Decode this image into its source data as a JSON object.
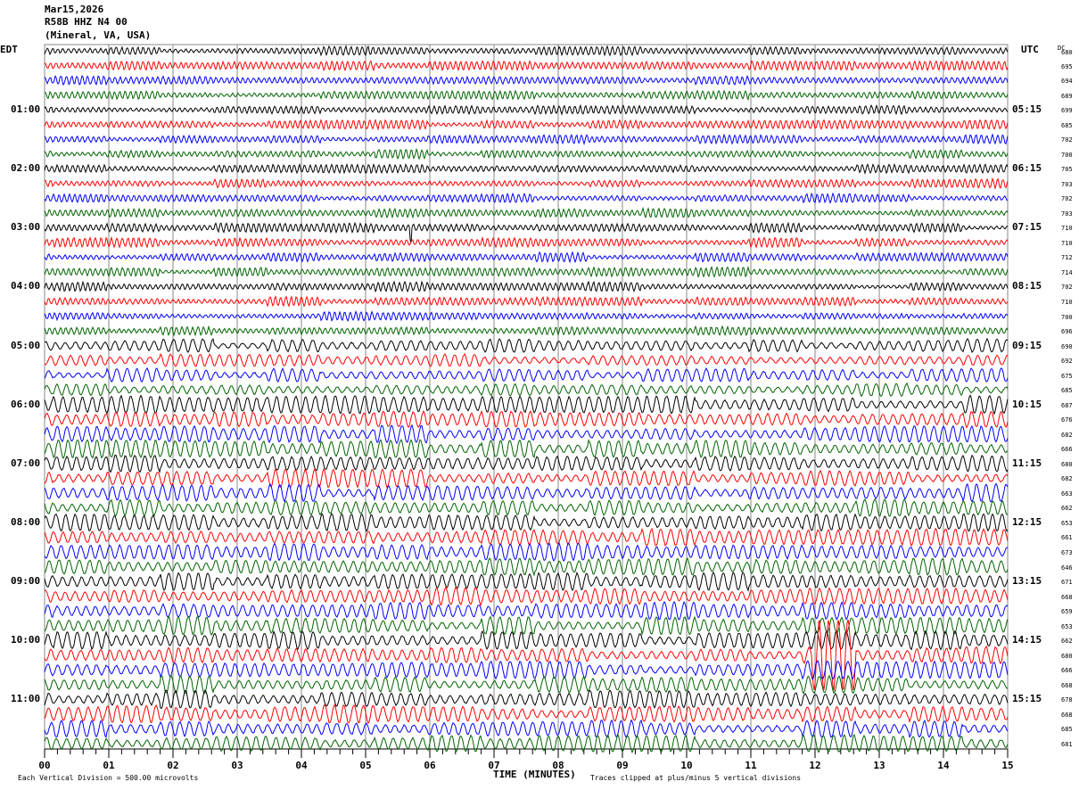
{
  "header": {
    "date": "Mar15,2026",
    "station": "R58B HHZ N4 00",
    "location": "(Mineral, VA, USA)"
  },
  "left_tz": "EDT",
  "right_tz": "UTC",
  "dc_label": "DC",
  "footer": {
    "scale": "Each Vertical Division =  500.00 microvolts",
    "clip": "Traces clipped at plus/minus 5 vertical divisions"
  },
  "chart_data": {
    "type": "line",
    "title": "R58B HHZ N4 00 helicorder",
    "xlabel": "TIME (MINUTES)",
    "xlim": [
      0,
      15
    ],
    "x_ticks": [
      "00",
      "01",
      "02",
      "03",
      "04",
      "05",
      "06",
      "07",
      "08",
      "09",
      "10",
      "11",
      "12",
      "13",
      "14",
      "15"
    ],
    "trace_colors": [
      "#000000",
      "#ff0000",
      "#0000ff",
      "#006400"
    ],
    "left_hour_labels": [
      "01:00",
      "02:00",
      "03:00",
      "04:00",
      "05:00",
      "06:00",
      "07:00",
      "08:00",
      "09:00",
      "10:00",
      "11:00"
    ],
    "right_hour_labels": [
      "05:15",
      "06:15",
      "07:15",
      "08:15",
      "09:15",
      "10:15",
      "11:15",
      "12:15",
      "13:15",
      "14:15",
      "15:15"
    ],
    "dc_values": [
      "680",
      "695",
      "694",
      "689",
      "699",
      "685",
      "702",
      "700",
      "705",
      "703",
      "702",
      "703",
      "710",
      "710",
      "712",
      "714",
      "702",
      "710",
      "700",
      "696",
      "690",
      "692",
      "675",
      "685",
      "687",
      "676",
      "682",
      "666",
      "680",
      "682",
      "663",
      "662",
      "653",
      "661",
      "673",
      "646",
      "671",
      "668",
      "659",
      "653",
      "662",
      "680",
      "666",
      "668",
      "678",
      "668",
      "685",
      "681"
    ],
    "events": [
      {
        "row": 41,
        "minute": 12.3,
        "description_amplitude": "large"
      },
      {
        "row": 12,
        "minute": 5.7,
        "description_amplitude": "spike"
      }
    ]
  }
}
